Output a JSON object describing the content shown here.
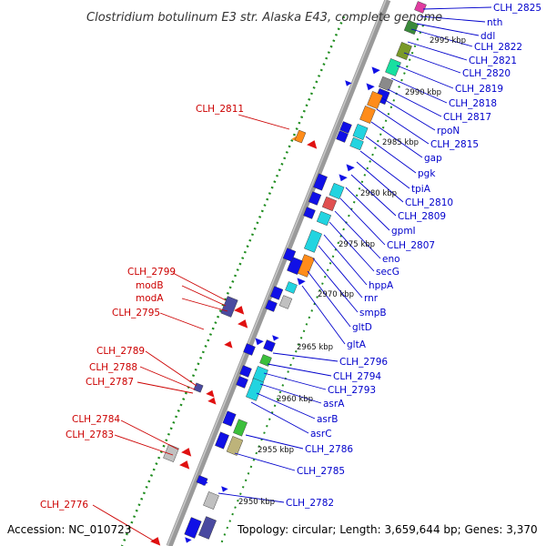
{
  "title": "Clostridium botulinum E3 str. Alaska E43, complete genome",
  "accession_text": "Accession: NC_010723",
  "summary_text": "Topology: circular; Length: 3,659,644 bp; Genes: 3,370",
  "colors": {
    "label_right": "#0000cc",
    "label_left": "#cc0000",
    "backbone": "#808080",
    "gc_dots": "#1e8c1e"
  },
  "kbp_markers": [
    "2995 kbp",
    "2990 kbp",
    "2985 kbp",
    "2980 kbp",
    "2975 kbp",
    "2970 kbp",
    "2965 kbp",
    "2960 kbp",
    "2955 kbp",
    "2950 kbp"
  ],
  "right_labels": [
    "CLH_2825",
    "nth",
    "ddl",
    "CLH_2822",
    "CLH_2821",
    "CLH_2820",
    "CLH_2819",
    "CLH_2818",
    "CLH_2817",
    "rpoN",
    "CLH_2815",
    "gap",
    "pgk",
    "tpiA",
    "CLH_2810",
    "CLH_2809",
    "gpmI",
    "CLH_2807",
    "eno",
    "secG",
    "hppA",
    "rnr",
    "smpB",
    "gltD",
    "gltA",
    "CLH_2796",
    "CLH_2794",
    "CLH_2793",
    "asrA",
    "asrB",
    "asrC",
    "CLH_2786",
    "CLH_2785",
    "CLH_2782"
  ],
  "left_labels": [
    "CLH_2811",
    "CLH_2799",
    "modB",
    "modA",
    "CLH_2795",
    "CLH_2789",
    "CLH_2788",
    "CLH_2787",
    "CLH_2784",
    "CLH_2783",
    "CLH_2776"
  ]
}
